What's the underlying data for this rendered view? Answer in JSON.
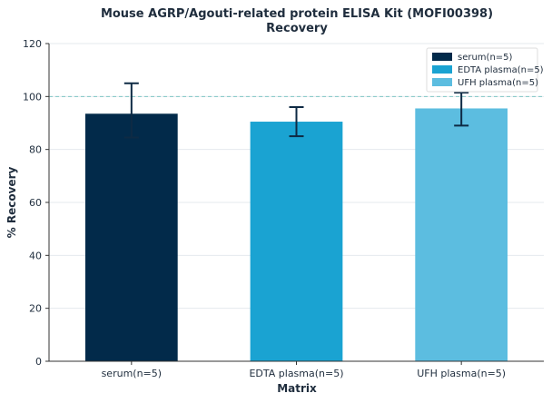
{
  "chart_data": {
    "type": "bar",
    "title": "Mouse AGRP/Agouti-related protein ELISA Kit (MOFI00398)",
    "subtitle": "Recovery",
    "xlabel": "Matrix",
    "ylabel": "% Recovery",
    "categories": [
      "serum(n=5)",
      "EDTA plasma(n=5)",
      "UFH plasma(n=5)"
    ],
    "values": [
      93.5,
      90.5,
      95.5
    ],
    "error_low": [
      84.5,
      85,
      89
    ],
    "error_high": [
      105,
      96,
      101.5
    ],
    "colors": [
      "#022a4a",
      "#1aa3d2",
      "#5cbde0"
    ],
    "ylim": [
      0,
      120
    ],
    "yticks": [
      0,
      20,
      40,
      60,
      80,
      100,
      120
    ],
    "reference_line": 100,
    "grid": true,
    "legend": {
      "placement": "top-right",
      "entries": [
        "serum(n=5)",
        "EDTA plasma(n=5)",
        "UFH plasma(n=5)"
      ]
    }
  }
}
